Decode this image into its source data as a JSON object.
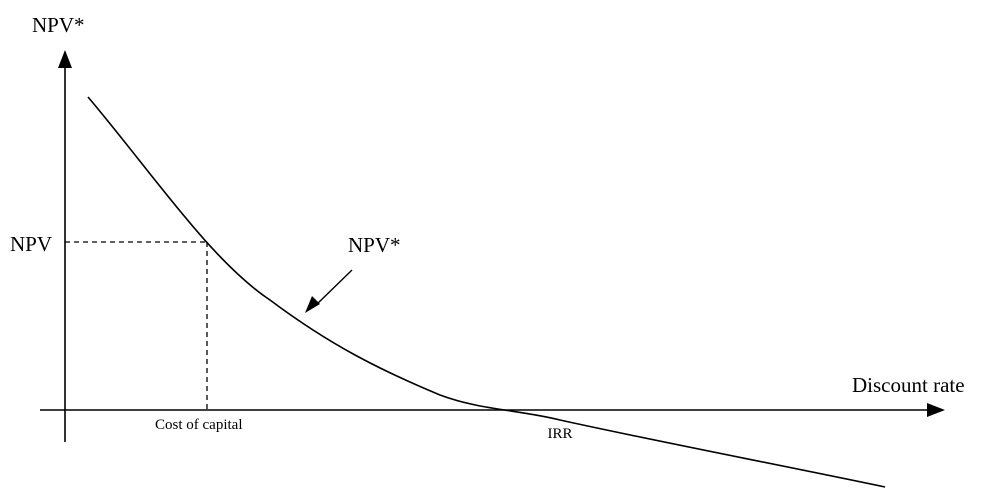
{
  "diagram": {
    "y_axis_label": "NPV*",
    "x_axis_label": "Discount rate",
    "npv_marker_label": "NPV",
    "curve_label": "NPV*",
    "cost_of_capital_label": "Cost of capital",
    "irr_label": "IRR"
  },
  "colors": {
    "line": "#000000",
    "background": "#ffffff"
  }
}
